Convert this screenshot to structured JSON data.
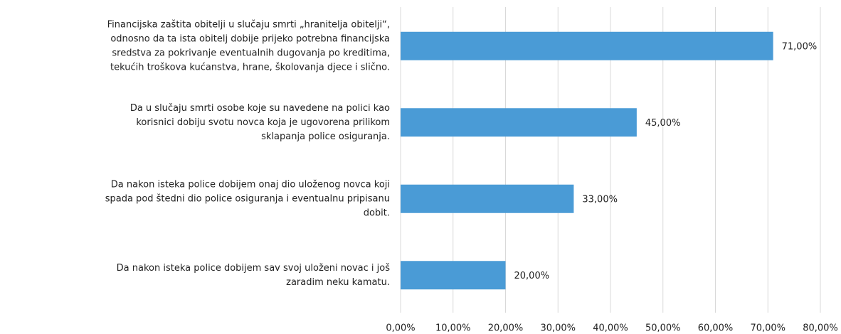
{
  "chart_data": {
    "type": "hbar",
    "categories": [
      [
        "Financijska zaštita obitelji u slučaju smrti „hranitelja obitelji“,",
        "odnosno da ta ista obitelj dobije prijeko potrebna financijska",
        "sredstva za pokrivanje eventualnih dugovanja po kreditima,",
        "tekućih troškova kućanstva, hrane, školovanja djece i slično."
      ],
      [
        "Da u slučaju smrti osobe koje su navedene na polici kao",
        "korisnici dobiju svotu novca koja je ugovorena prilikom",
        "sklapanja police osiguranja."
      ],
      [
        "Da nakon isteka police dobijem onaj dio uloženog novca koji",
        "spada pod štedni dio police osiguranja i eventualnu pripisanu",
        "dobit."
      ],
      [
        "Da nakon isteka police dobijem sav svoj uloženi novac i još",
        "zaradim neku kamatu."
      ]
    ],
    "values": [
      71,
      45,
      33,
      20
    ],
    "value_labels": [
      "71,00%",
      "45,00%",
      "33,00%",
      "20,00%"
    ],
    "color": "#4a9bd6",
    "xlim": [
      0,
      80
    ],
    "xticks": [
      {
        "value": 0,
        "label": "0,00%"
      },
      {
        "value": 10,
        "label": "10,00%"
      },
      {
        "value": 20,
        "label": "20,00%"
      },
      {
        "value": 30,
        "label": "30,00%"
      },
      {
        "value": 40,
        "label": "40,00%"
      },
      {
        "value": 50,
        "label": "50,00%"
      },
      {
        "value": 60,
        "label": "60,00%"
      },
      {
        "value": 70,
        "label": "70,00%"
      },
      {
        "value": 80,
        "label": "80,00%"
      }
    ],
    "grid": true
  }
}
